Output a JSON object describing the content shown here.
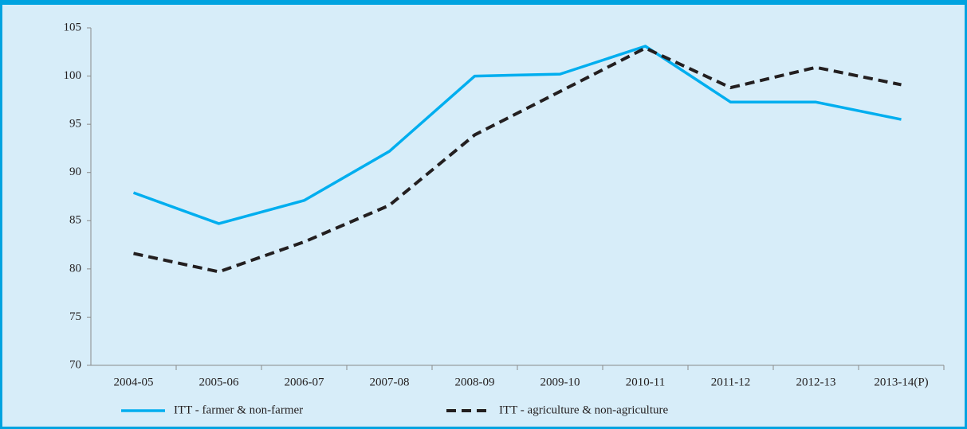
{
  "chart_data": {
    "type": "line",
    "categories": [
      "2004-05",
      "2005-06",
      "2006-07",
      "2007-08",
      "2008-09",
      "2009-10",
      "2010-11",
      "2011-12",
      "2012-13",
      "2013-14(P)"
    ],
    "series": [
      {
        "name": "ITT - farmer & non-farmer",
        "color": "#00aeef",
        "dash": false,
        "values": [
          87.9,
          84.7,
          87.1,
          92.2,
          100.0,
          100.2,
          103.1,
          97.3,
          97.3,
          95.5
        ]
      },
      {
        "name": "ITT - agriculture & non-agriculture",
        "color": "#231f20",
        "dash": true,
        "values": [
          81.6,
          79.7,
          82.8,
          86.6,
          93.9,
          98.4,
          102.9,
          98.8,
          100.9,
          99.1
        ]
      }
    ],
    "ylim": [
      70,
      105
    ],
    "yticks": [
      70,
      75,
      80,
      85,
      90,
      95,
      100,
      105
    ],
    "grid": false,
    "legend": "bottom"
  }
}
